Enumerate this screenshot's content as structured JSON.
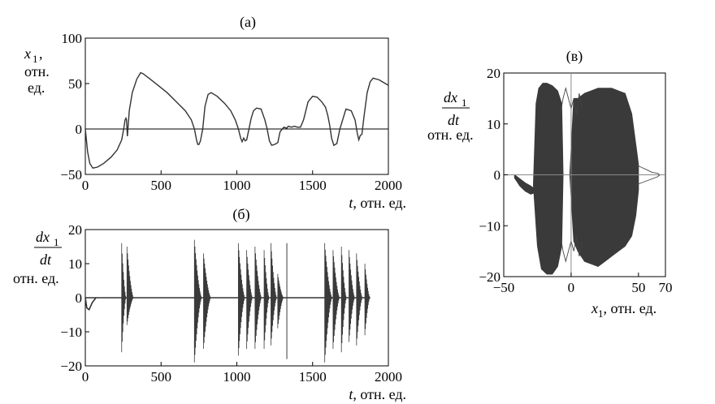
{
  "chart_data": [
    {
      "id": "a",
      "type": "line",
      "title": "(а)",
      "xlabel": "t, отн. ед.",
      "xlabel_var": "t",
      "xlabel_unit": ", отн. ед.",
      "ylabel_var": "x",
      "ylabel_sub": "1",
      "ylabel_lines": [
        ",",
        "отн.",
        "ед."
      ],
      "xlim": [
        0,
        2000
      ],
      "ylim": [
        -50,
        100
      ],
      "xticks": [
        0,
        500,
        1000,
        1500,
        2000
      ],
      "yticks": [
        -50,
        0,
        50,
        100
      ],
      "xtick_labels": [
        "0",
        "500",
        "1000",
        "1500",
        "2000"
      ],
      "ytick_labels": [
        "−50",
        "0",
        "50",
        "100"
      ],
      "zero_line": true,
      "series": [
        {
          "x": [
            0,
            15,
            30,
            50,
            80,
            120,
            170,
            210,
            240,
            255,
            262,
            268,
            272,
            278,
            290,
            310,
            340,
            365,
            380,
            420,
            480,
            540,
            600,
            660,
            700,
            720,
            735,
            742,
            750,
            760,
            775,
            790,
            810,
            830,
            870,
            920,
            960,
            990,
            1010,
            1025,
            1035,
            1045,
            1055,
            1065,
            1080,
            1095,
            1110,
            1130,
            1160,
            1185,
            1200,
            1215,
            1230,
            1250,
            1270,
            1285,
            1310,
            1330,
            1340,
            1360,
            1380,
            1400,
            1420,
            1440,
            1470,
            1500,
            1530,
            1560,
            1585,
            1600,
            1612,
            1625,
            1640,
            1660,
            1680,
            1720,
            1755,
            1780,
            1795,
            1805,
            1815,
            1825,
            1840,
            1860,
            1880,
            1900,
            1940,
            1980,
            2000
          ],
          "y": [
            0,
            -25,
            -38,
            -43,
            -42,
            -38,
            -31,
            -23,
            -12,
            2,
            10,
            12,
            10,
            -8,
            20,
            40,
            55,
            62,
            61,
            56,
            48,
            40,
            30,
            20,
            10,
            0,
            -13,
            -17,
            -17,
            -13,
            0,
            25,
            38,
            40,
            36,
            28,
            20,
            10,
            0,
            -10,
            -14,
            -10,
            -13,
            -12,
            0,
            12,
            20,
            23,
            22,
            10,
            0,
            -13,
            -18,
            -17,
            -15,
            -3,
            2,
            1,
            3,
            2,
            3,
            2,
            2,
            10,
            30,
            36,
            35,
            30,
            24,
            15,
            5,
            -10,
            -18,
            -16,
            0,
            22,
            20,
            10,
            -5,
            -12,
            -7,
            -6,
            15,
            40,
            52,
            56,
            54,
            50,
            48
          ]
        }
      ]
    },
    {
      "id": "b",
      "type": "line",
      "title": "(б)",
      "xlabel": "t, отн. ед.",
      "xlabel_var": "t",
      "xlabel_unit": ", отн. ед.",
      "ylabel_num": "dx",
      "ylabel_num_sub": "1",
      "ylabel_den": "dt",
      "ylabel_unit": "отн. ед.",
      "xlim": [
        0,
        2000
      ],
      "ylim": [
        -20,
        20
      ],
      "xticks": [
        0,
        500,
        1000,
        1500,
        2000
      ],
      "yticks": [
        -20,
        -10,
        0,
        10,
        20
      ],
      "xtick_labels": [
        "0",
        "500",
        "1000",
        "1500",
        "2000"
      ],
      "ytick_labels": [
        "−20",
        "−10",
        "0",
        "10",
        "20"
      ],
      "oscillation_bursts": [
        {
          "start": 240,
          "end": 270,
          "max": 16,
          "min": -16
        },
        {
          "start": 275,
          "end": 320,
          "max": 15,
          "min": -8
        },
        {
          "start": 720,
          "end": 770,
          "max": 17,
          "min": -19
        },
        {
          "start": 780,
          "end": 830,
          "max": 13,
          "min": -15
        },
        {
          "start": 1010,
          "end": 1055,
          "max": 16,
          "min": -17
        },
        {
          "start": 1065,
          "end": 1105,
          "max": 14,
          "min": -15
        },
        {
          "start": 1120,
          "end": 1165,
          "max": 15,
          "min": -15
        },
        {
          "start": 1180,
          "end": 1215,
          "max": 14,
          "min": -15
        },
        {
          "start": 1225,
          "end": 1265,
          "max": 16,
          "min": -14
        },
        {
          "start": 1270,
          "end": 1310,
          "max": 7,
          "min": -9
        },
        {
          "start": 1580,
          "end": 1630,
          "max": 16,
          "min": -19
        },
        {
          "start": 1635,
          "end": 1680,
          "max": 14,
          "min": -15
        },
        {
          "start": 1690,
          "end": 1725,
          "max": 15,
          "min": -16
        },
        {
          "start": 1740,
          "end": 1780,
          "max": 14,
          "min": -13
        },
        {
          "start": 1790,
          "end": 1830,
          "max": 13,
          "min": -14
        },
        {
          "start": 1845,
          "end": 1880,
          "max": 10,
          "min": -11
        }
      ],
      "spikes": [
        {
          "x": 1330,
          "y": 16
        },
        {
          "x": 1330,
          "y": -18
        }
      ],
      "baseline_dip": {
        "x": [
          0,
          10,
          25,
          45,
          70
        ],
        "y": [
          0,
          -3,
          -3.5,
          -1.5,
          0
        ]
      }
    },
    {
      "id": "v",
      "type": "scatter",
      "title": "(в)",
      "xlabel": "x1, отн. ед.",
      "xlabel_var": "x",
      "xlabel_sub": "1",
      "xlabel_unit": ", отн. ед.",
      "ylabel_num": "dx",
      "ylabel_num_sub": "1",
      "ylabel_den": "dt",
      "ylabel_unit": "отн. ед.",
      "xlim": [
        -50,
        70
      ],
      "ylim": [
        -20,
        20
      ],
      "xticks": [
        -50,
        0,
        50,
        70
      ],
      "yticks": [
        -20,
        -10,
        0,
        10,
        20
      ],
      "xtick_labels": [
        "−50",
        "0",
        "50",
        "70"
      ],
      "ytick_labels": [
        "−20",
        "−10",
        "0",
        "10",
        "20"
      ],
      "zero_lines": true,
      "filled_regions": [
        {
          "x": [
            -28,
            -26,
            -24,
            -21,
            -18,
            -14,
            -10,
            -7,
            -6,
            -7,
            -10,
            -14,
            -18,
            -22,
            -25,
            -28
          ],
          "y": [
            -2,
            14,
            17,
            18,
            18,
            17.5,
            16.5,
            14,
            0,
            -14,
            -18,
            -19.5,
            -19.5,
            -18.5,
            -14,
            -2
          ]
        },
        {
          "x": [
            -1,
            2,
            5,
            10,
            15,
            20,
            25,
            30,
            35,
            40,
            45,
            48,
            50,
            50,
            48,
            45,
            40,
            35,
            30,
            25,
            20,
            15,
            10,
            5,
            2,
            -1
          ],
          "y": [
            0,
            15,
            15,
            16,
            16.5,
            17,
            17,
            17,
            16.5,
            16,
            12,
            6,
            2,
            -3,
            -8,
            -12,
            -14,
            -15,
            -16,
            -17,
            -18,
            -17.5,
            -17,
            -15,
            -13,
            0
          ]
        },
        {
          "x": [
            -42,
            -38,
            -34,
            -30,
            -28,
            -28,
            -30,
            -34,
            -38,
            -42
          ],
          "y": [
            0,
            -0.8,
            -1.6,
            -2.2,
            -2.6,
            -3.6,
            -3.8,
            -3.2,
            -2.2,
            -0.6
          ]
        }
      ],
      "loops": [
        {
          "x": [
            -8,
            -6,
            -4,
            -2,
            0,
            2,
            4,
            6,
            8
          ],
          "y": [
            12,
            15,
            17,
            15,
            13,
            15,
            12,
            16,
            13
          ]
        },
        {
          "x": [
            -8,
            -6,
            -4,
            -2,
            0,
            2,
            4,
            6,
            8
          ],
          "y": [
            -12,
            -15,
            -17,
            -15,
            -13,
            -15,
            -12,
            -16,
            -13
          ]
        },
        {
          "x": [
            48,
            52,
            56,
            60,
            64,
            66,
            64,
            60,
            56,
            52,
            48
          ],
          "y": [
            2,
            1.5,
            1,
            0.5,
            0.3,
            0,
            -0.4,
            -0.8,
            -1.2,
            -1.6,
            -2
          ]
        }
      ]
    }
  ]
}
